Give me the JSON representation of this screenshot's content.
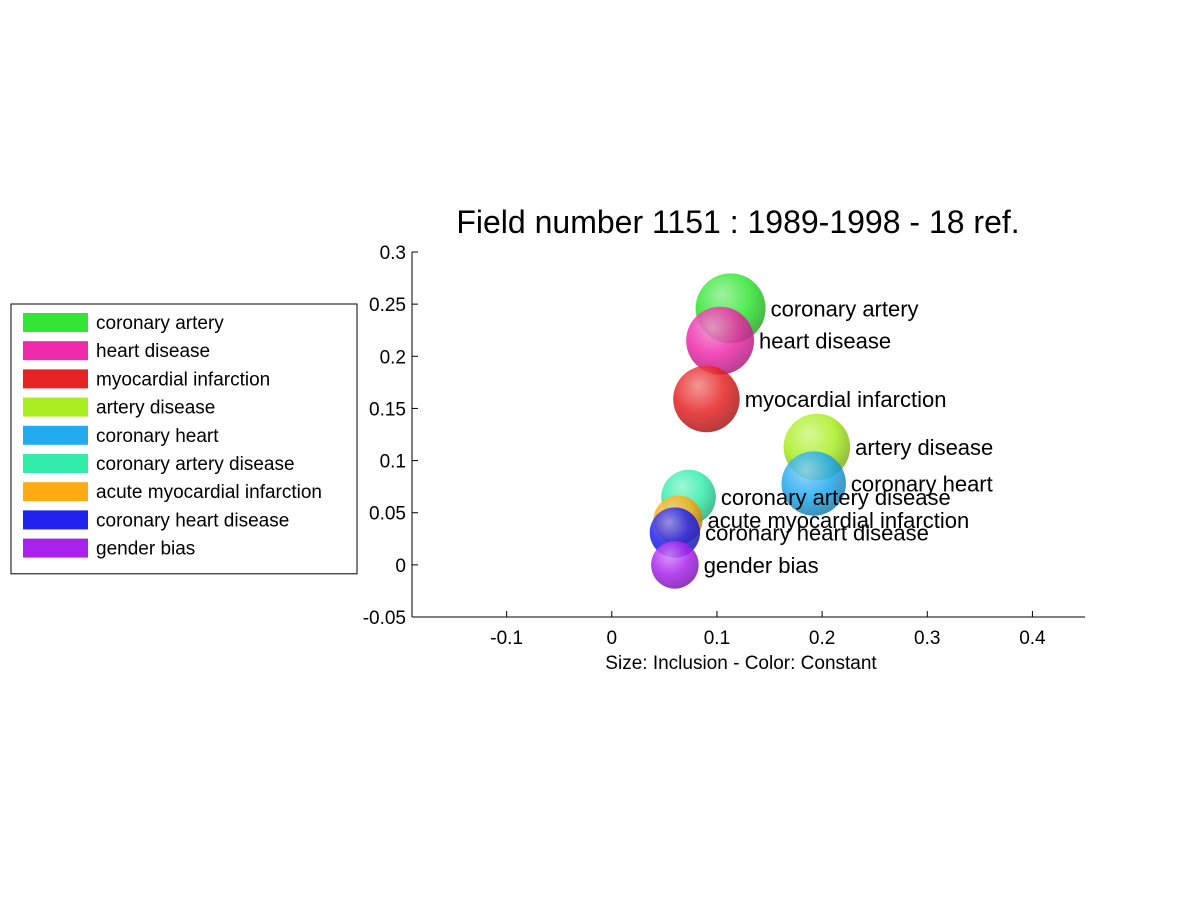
{
  "chart_data": {
    "type": "scatter",
    "title": "Field number 1151 : 1989-1998  - 18 ref.",
    "xlabel": "Size: Inclusion - Color: Constant",
    "ylabel": "",
    "xlim": [
      -0.19,
      0.45
    ],
    "ylim": [
      -0.05,
      0.3
    ],
    "xticks": [
      -0.1,
      0,
      0.1,
      0.2,
      0.3,
      0.4
    ],
    "xtick_labels": [
      "-0.1",
      "0",
      "0.1",
      "0.2",
      "0.3",
      "0.4"
    ],
    "yticks": [
      -0.05,
      0,
      0.05,
      0.1,
      0.15,
      0.2,
      0.25,
      0.3
    ],
    "ytick_labels": [
      "-0.05",
      "0",
      "0.05",
      "0.1",
      "0.15",
      "0.2",
      "0.25",
      "0.3"
    ],
    "grid": false,
    "legend_position": "left",
    "series": [
      {
        "name": "coronary artery",
        "x": 0.113,
        "y": 0.246,
        "size": 1.0,
        "color": "#33e633"
      },
      {
        "name": "heart disease",
        "x": 0.103,
        "y": 0.215,
        "size": 0.97,
        "color": "#ee2aaa"
      },
      {
        "name": "myocardial infarction",
        "x": 0.09,
        "y": 0.159,
        "size": 0.95,
        "color": "#e62222"
      },
      {
        "name": "artery disease",
        "x": 0.195,
        "y": 0.113,
        "size": 0.95,
        "color": "#aaee22"
      },
      {
        "name": "coronary heart",
        "x": 0.192,
        "y": 0.078,
        "size": 0.92,
        "color": "#22aaee"
      },
      {
        "name": "coronary artery disease",
        "x": 0.073,
        "y": 0.065,
        "size": 0.78,
        "color": "#33eeaa"
      },
      {
        "name": "acute myocardial infarction",
        "x": 0.063,
        "y": 0.043,
        "size": 0.7,
        "color": "#ffaa11"
      },
      {
        "name": "coronary heart disease",
        "x": 0.06,
        "y": 0.031,
        "size": 0.72,
        "color": "#2222ee"
      },
      {
        "name": "gender bias",
        "x": 0.06,
        "y": 0.0,
        "size": 0.68,
        "color": "#aa22ee"
      }
    ]
  }
}
